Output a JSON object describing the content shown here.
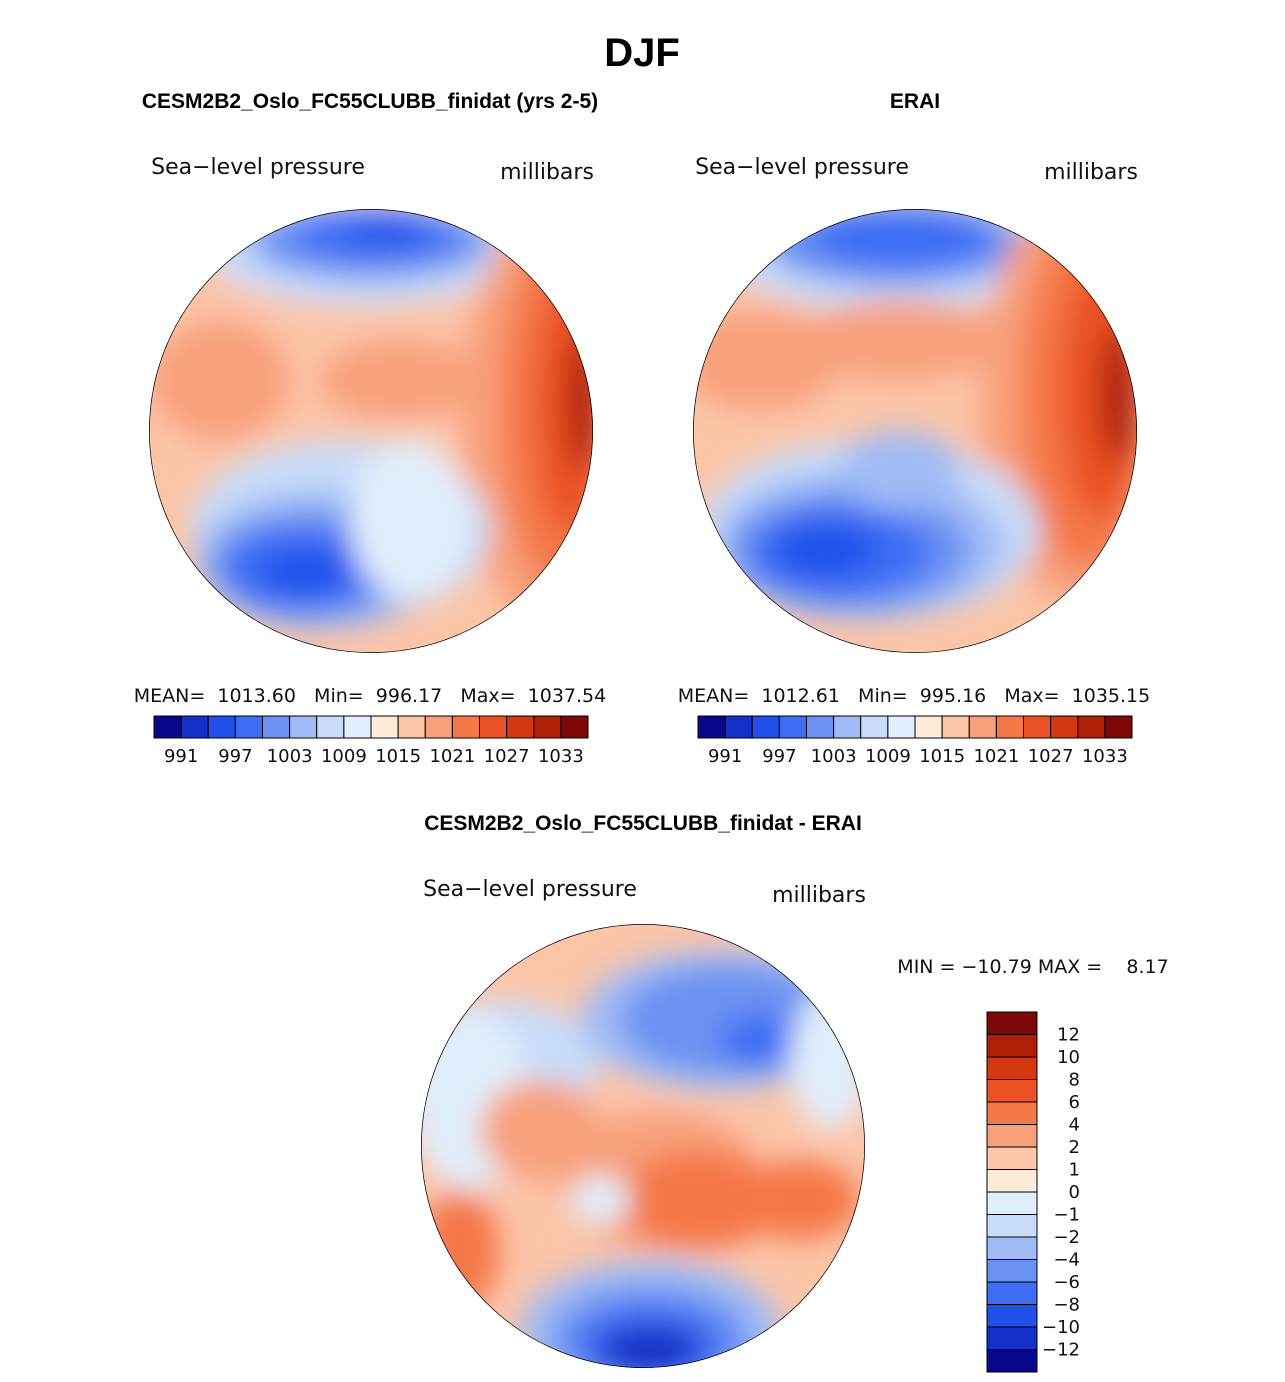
{
  "title": "DJF",
  "chart_data": [
    {
      "type": "heatmap",
      "projection": "north-polar-stereographic",
      "title": "CESM2B2_Oslo_FC55CLUBB_finidat (yrs 2-5)",
      "variable": "Sea−level pressure",
      "units": "millibars",
      "stats_text": "MEAN=  1013.60   Min=  996.17   Max=  1037.54",
      "stats": {
        "mean": 1013.6,
        "min": 996.17,
        "max": 1037.54
      },
      "colorbar_ticks": [
        "991",
        "997",
        "1003",
        "1009",
        "1015",
        "1021",
        "1027",
        "1033"
      ],
      "contour_levels": [
        991,
        994,
        997,
        1000,
        1003,
        1006,
        1009,
        1012,
        1015,
        1018,
        1021,
        1024,
        1027,
        1030,
        1033
      ],
      "colors": [
        "#08088c",
        "#1530c8",
        "#1f50ea",
        "#3e6df4",
        "#6a92f2",
        "#a0bcf5",
        "#c8dcf9",
        "#e1eefb",
        "#feebd8",
        "#fcc5a8",
        "#f8a07c",
        "#f47848",
        "#ea5124",
        "#d33812",
        "#b01f08",
        "#7e0707"
      ]
    },
    {
      "type": "heatmap",
      "projection": "north-polar-stereographic",
      "title": "ERAI",
      "variable": "Sea−level pressure",
      "units": "millibars",
      "stats_text": "MEAN=  1012.61   Min=  995.16   Max=  1035.15",
      "stats": {
        "mean": 1012.61,
        "min": 995.16,
        "max": 1035.15
      },
      "colorbar_ticks": [
        "991",
        "997",
        "1003",
        "1009",
        "1015",
        "1021",
        "1027",
        "1033"
      ],
      "contour_levels": [
        991,
        994,
        997,
        1000,
        1003,
        1006,
        1009,
        1012,
        1015,
        1018,
        1021,
        1024,
        1027,
        1030,
        1033
      ],
      "colors": [
        "#08088c",
        "#1530c8",
        "#1f50ea",
        "#3e6df4",
        "#6a92f2",
        "#a0bcf5",
        "#c8dcf9",
        "#e1eefb",
        "#feebd8",
        "#fcc5a8",
        "#f8a07c",
        "#f47848",
        "#ea5124",
        "#d33812",
        "#b01f08",
        "#7e0707"
      ]
    },
    {
      "type": "heatmap",
      "projection": "north-polar-stereographic",
      "title": "CESM2B2_Oslo_FC55CLUBB_finidat - ERAI",
      "variable": "Sea−level pressure",
      "units": "millibars",
      "stats_text": "MIN = −10.79 MAX =    8.17",
      "stats": {
        "min": -10.79,
        "max": 8.17
      },
      "colorbar_ticks": [
        "12",
        "10",
        "8",
        "6",
        "4",
        "2",
        "1",
        "0",
        "−1",
        "−2",
        "−4",
        "−6",
        "−8",
        "−10",
        "−12"
      ],
      "contour_levels": [
        -12,
        -10,
        -8,
        -6,
        -4,
        -2,
        -1,
        0,
        1,
        2,
        4,
        6,
        8,
        10,
        12
      ],
      "colors": [
        "#7e0707",
        "#b01f08",
        "#d33812",
        "#ea5124",
        "#f47848",
        "#f8a07c",
        "#fcc5a8",
        "#feebd8",
        "#e1eefb",
        "#c8dcf9",
        "#a0bcf5",
        "#6a92f2",
        "#3e6df4",
        "#1f50ea",
        "#1530c8",
        "#08088c"
      ]
    }
  ]
}
